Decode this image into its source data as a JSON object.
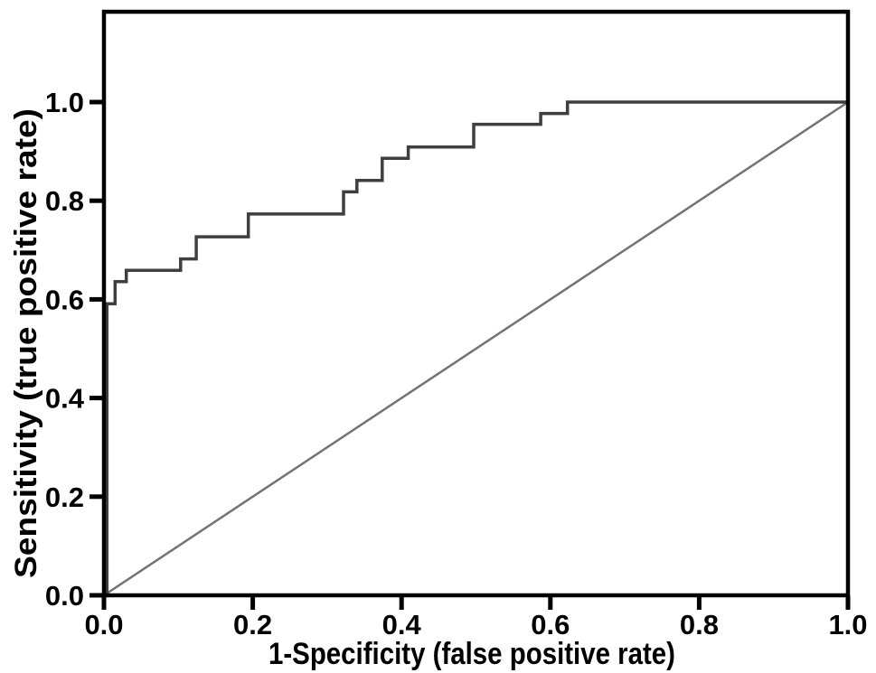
{
  "figure": {
    "background": "#ffffff",
    "axis_color": "#000000"
  },
  "chart_data": {
    "type": "line",
    "subtype": "roc-curve",
    "title": "",
    "xlabel": "1-Specificity (false positive rate)",
    "ylabel": "Sensitivity (true positive rate)",
    "xlim": [
      0,
      1.0
    ],
    "ylim": [
      0,
      1.18
    ],
    "grid": false,
    "legend_position": "none",
    "x_ticks": {
      "values": [
        0.0,
        0.2,
        0.4,
        0.6,
        0.8,
        1.0
      ],
      "labels": [
        "0.0",
        "0.2",
        "0.4",
        "0.6",
        "0.8",
        "1.0"
      ]
    },
    "y_ticks": {
      "values": [
        0.0,
        0.2,
        0.4,
        0.6,
        0.8,
        1.0
      ],
      "labels": [
        "0.0",
        "0.2",
        "0.4",
        "0.6",
        "0.8",
        "1.0"
      ]
    },
    "series": [
      {
        "name": "roc-step-curve",
        "style": "step",
        "color": "#3f3f3f",
        "stroke_width": 3.5,
        "points": [
          [
            0.004,
            0.0
          ],
          [
            0.004,
            0.591
          ],
          [
            0.015,
            0.591
          ],
          [
            0.015,
            0.636
          ],
          [
            0.03,
            0.636
          ],
          [
            0.03,
            0.659
          ],
          [
            0.103,
            0.659
          ],
          [
            0.103,
            0.682
          ],
          [
            0.124,
            0.682
          ],
          [
            0.124,
            0.727
          ],
          [
            0.194,
            0.727
          ],
          [
            0.194,
            0.773
          ],
          [
            0.322,
            0.773
          ],
          [
            0.322,
            0.818
          ],
          [
            0.34,
            0.818
          ],
          [
            0.34,
            0.841
          ],
          [
            0.374,
            0.841
          ],
          [
            0.374,
            0.886
          ],
          [
            0.409,
            0.886
          ],
          [
            0.409,
            0.909
          ],
          [
            0.497,
            0.909
          ],
          [
            0.497,
            0.955
          ],
          [
            0.587,
            0.955
          ],
          [
            0.587,
            0.977
          ],
          [
            0.623,
            0.977
          ],
          [
            0.623,
            1.0
          ],
          [
            1.0,
            1.0
          ]
        ]
      },
      {
        "name": "reference-diagonal",
        "style": "line",
        "color": "#737373",
        "stroke_width": 2.5,
        "points": [
          [
            0.0,
            0.0
          ],
          [
            1.0,
            1.0
          ]
        ]
      }
    ]
  }
}
